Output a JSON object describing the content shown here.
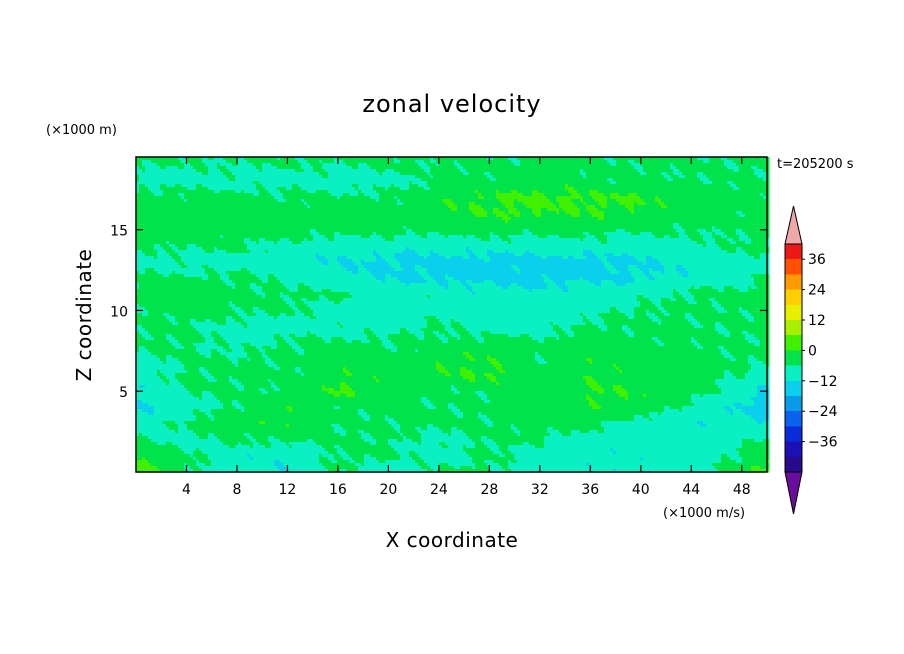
{
  "chart_data": {
    "type": "heatmap",
    "title": "zonal velocity",
    "xlabel": "X coordinate",
    "ylabel": "Z coordinate",
    "x_unit": "(×1000 m/s)",
    "y_unit": "(×1000 m)",
    "time_label": "t=205200 s",
    "xlim": [
      0,
      50
    ],
    "ylim": [
      0,
      19.5
    ],
    "x_ticks": [
      "4",
      "8",
      "12",
      "16",
      "20",
      "24",
      "28",
      "32",
      "36",
      "40",
      "44",
      "48"
    ],
    "y_ticks": [
      "5",
      "10",
      "15"
    ],
    "colorbar": {
      "labels": [
        "36",
        "24",
        "12",
        "0",
        "−12",
        "−24",
        "−36"
      ],
      "levels": [
        -42,
        -36,
        -30,
        -24,
        -18,
        -12,
        -6,
        0,
        6,
        12,
        18,
        24,
        30,
        36,
        42
      ],
      "colors": [
        "#6a0d9c",
        "#2a0a8c",
        "#1a10b4",
        "#0a2bd8",
        "#0a62ee",
        "#0a9be8",
        "#0ad0ee",
        "#0af0c2",
        "#00e34a",
        "#40f000",
        "#a8f000",
        "#e8f000",
        "#ffd000",
        "#ff9a00",
        "#ff5000",
        "#ee1818",
        "#f0a8a8"
      ]
    },
    "value_grid": {
      "x": [
        0,
        4,
        8,
        12,
        16,
        20,
        24,
        28,
        32,
        36,
        40,
        44,
        48,
        50
      ],
      "y": [
        0,
        1,
        2,
        3,
        4,
        5,
        6,
        7,
        8,
        9,
        10,
        11,
        12,
        13,
        14,
        15,
        16,
        17,
        18,
        19.5
      ],
      "values": [
        [
          8,
          2,
          -4,
          -6,
          1,
          -4,
          1,
          1,
          -3,
          -4,
          -4,
          -4,
          3,
          8
        ],
        [
          6,
          1,
          -4,
          -4,
          1,
          1,
          -3,
          1,
          -4,
          -4,
          -4,
          -4,
          1,
          6
        ],
        [
          1,
          -3,
          1,
          1,
          1,
          1,
          -2,
          1,
          1,
          -4,
          -3,
          -4,
          -1,
          1
        ],
        [
          -4,
          1,
          4,
          5,
          1,
          1,
          2,
          1,
          2,
          2,
          -3,
          -4,
          -5,
          -6
        ],
        [
          -7,
          -3,
          1,
          4,
          2,
          1,
          1,
          1,
          2,
          5,
          4,
          -2,
          -6,
          -8
        ],
        [
          -6,
          1,
          1,
          1,
          7,
          3,
          1,
          1,
          3,
          6,
          5,
          3,
          -4,
          -7
        ],
        [
          -4,
          1,
          1,
          1,
          5,
          3,
          5,
          7,
          3,
          5,
          4,
          2,
          0,
          -3
        ],
        [
          -2,
          1,
          1,
          1,
          3,
          1,
          5,
          5,
          1,
          4,
          3,
          2,
          1,
          1
        ],
        [
          1,
          1,
          -2,
          1,
          1,
          1,
          1,
          2,
          1,
          3,
          2,
          1,
          1,
          1
        ],
        [
          1,
          1,
          -2,
          -3,
          -2,
          -2,
          1,
          -3,
          -3,
          1,
          1,
          1,
          1,
          1
        ],
        [
          1,
          2,
          1,
          1,
          -3,
          -4,
          -2,
          -3,
          -3,
          -2,
          1,
          1,
          1,
          1
        ],
        [
          3,
          3,
          2,
          1,
          1,
          -3,
          -2,
          -4,
          -4,
          -3,
          -2,
          1,
          2,
          2
        ],
        [
          1,
          1,
          1,
          -2,
          -5,
          -6,
          -7,
          -8,
          -8,
          -7,
          -6,
          -4,
          -2,
          1
        ],
        [
          -2,
          -2,
          -3,
          -4,
          -6,
          -7,
          -8,
          -8,
          -8,
          -8,
          -6,
          -5,
          -3,
          -2
        ],
        [
          1,
          1,
          1,
          -2,
          -3,
          -4,
          -4,
          -3,
          -3,
          -3,
          -3,
          -2,
          1,
          1
        ],
        [
          3,
          3,
          3,
          3,
          2,
          2,
          2,
          2,
          2,
          2,
          1,
          1,
          1,
          2
        ],
        [
          4,
          4,
          4,
          3,
          3,
          2,
          5,
          6,
          6,
          6,
          5,
          3,
          2,
          3
        ],
        [
          2,
          2,
          2,
          1,
          1,
          1,
          4,
          6,
          7,
          7,
          6,
          4,
          3,
          2
        ],
        [
          -2,
          -2,
          -2,
          -2,
          -3,
          -2,
          1,
          2,
          3,
          2,
          1,
          1,
          1,
          1
        ],
        [
          1,
          1,
          1,
          1,
          2,
          2,
          1,
          1,
          1,
          1,
          1,
          1,
          1,
          1
        ]
      ]
    }
  }
}
